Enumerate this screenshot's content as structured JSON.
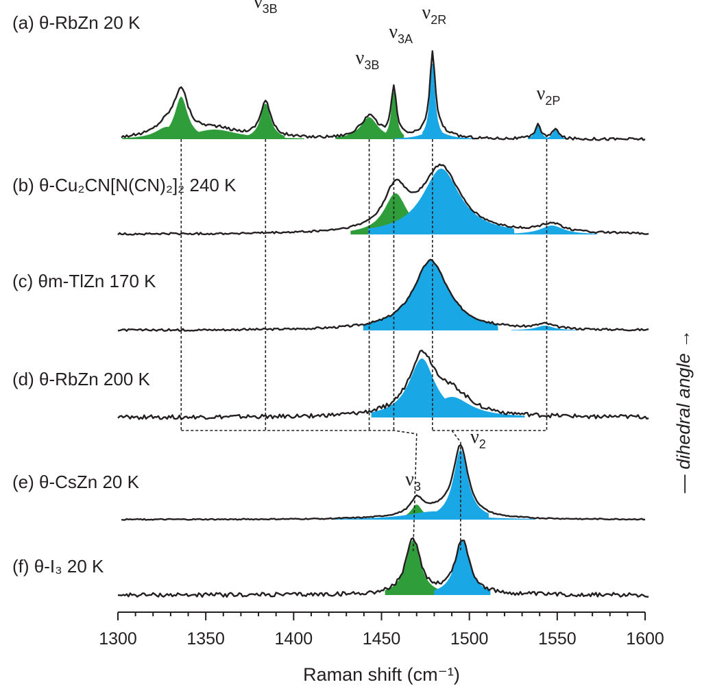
{
  "chart_data": {
    "type": "line",
    "title": "",
    "xlabel": "Raman shift (cm⁻¹)",
    "xlim": [
      1300,
      1600
    ],
    "x_ticks": [
      "1300",
      "1350",
      "1400",
      "1450",
      "1500",
      "1550",
      "1600"
    ],
    "side_annotation": "— dihedral angle →",
    "colors": {
      "v3": "#2f9e3a",
      "v2": "#1aa7e6",
      "line": "#231f20"
    },
    "series": [
      {
        "id": "a",
        "panel": "(a)",
        "sample": [
          "θ-RbZn",
          "20 K"
        ],
        "noise": 2,
        "start": 1302,
        "end": 1600,
        "peaks": [
          {
            "name": "ν3A",
            "center": 1336,
            "amp": 62,
            "width": 4.5,
            "band": "v3"
          },
          {
            "name": "ν3A-shoulder",
            "center": 1328,
            "amp": 18,
            "width": 8,
            "band": "v3"
          },
          {
            "name": "plateau",
            "center": 1355,
            "amp": 14,
            "width": 16,
            "band": "v3"
          },
          {
            "name": "ν3B",
            "center": 1384,
            "amp": 52,
            "width": 3.5,
            "band": "v3"
          },
          {
            "name": "ν3B",
            "center": 1443,
            "amp": 32,
            "width": 6,
            "band": "v3"
          },
          {
            "name": "ν3A",
            "center": 1457,
            "amp": 70,
            "width": 1.8,
            "band": "v3"
          },
          {
            "name": "ν2R",
            "center": 1479,
            "amp": 112,
            "width": 1.8,
            "band": "v2"
          },
          {
            "name": "ν2R-base",
            "center": 1480,
            "amp": 14,
            "width": 7,
            "band": "v2"
          },
          {
            "name": "ν2P",
            "center": 1539,
            "amp": 22,
            "width": 1.8,
            "band": "v2"
          },
          {
            "name": "ν2P",
            "center": 1549,
            "amp": 16,
            "width": 1.8,
            "band": "v2"
          }
        ],
        "peak_labels": [
          {
            "text": "ν",
            "sub": "3A",
            "x": 1336,
            "y": 255
          },
          {
            "text": "ν",
            "sub": "3B",
            "x": 1384,
            "y": 192
          },
          {
            "text": "ν",
            "sub": "3B",
            "x": 1442,
            "y": 110
          },
          {
            "text": "ν",
            "sub": "3A",
            "x": 1461,
            "y": 148
          },
          {
            "text": "ν",
            "sub": "2R",
            "x": 1480,
            "y": 176
          },
          {
            "text": "ν",
            "sub": "2P",
            "x": 1545,
            "y": 58
          }
        ]
      },
      {
        "id": "b",
        "panel": "(b)",
        "sample": [
          "θ-Cu₂CN[N(CN)₂]₂",
          "240 K"
        ],
        "noise": 1.5,
        "start": 1300,
        "end": 1602,
        "peaks": [
          {
            "name": "ν3",
            "center": 1458,
            "amp": 60,
            "width": 8,
            "band": "v3"
          },
          {
            "name": "ν2",
            "center": 1484,
            "amp": 96,
            "width": 13,
            "band": "v2"
          },
          {
            "name": "ν2P",
            "center": 1547,
            "amp": 13,
            "width": 8,
            "band": "v2"
          }
        ],
        "peak_labels": []
      },
      {
        "id": "c",
        "panel": "(c)",
        "sample": [
          "θm-TlZn",
          "170 K"
        ],
        "noise": 1.5,
        "start": 1300,
        "end": 1602,
        "peaks": [
          {
            "name": "ν2",
            "center": 1478,
            "amp": 102,
            "width": 12,
            "band": "v2"
          },
          {
            "name": "ν2P",
            "center": 1543,
            "amp": 7,
            "width": 6,
            "band": "v2"
          }
        ],
        "peak_labels": []
      },
      {
        "id": "d",
        "panel": "(d)",
        "sample": [
          "θ-RbZn",
          "200 K"
        ],
        "noise": 3,
        "start": 1300,
        "end": 1602,
        "peaks": [
          {
            "name": "ν2",
            "center": 1473,
            "amp": 86,
            "width": 9,
            "band": "v2"
          },
          {
            "name": "ν2-wing",
            "center": 1490,
            "amp": 30,
            "width": 13,
            "band": "v2"
          }
        ],
        "peak_labels": []
      },
      {
        "id": "e",
        "panel": "(e)",
        "sample": [
          "θ-CsZn",
          "20 K"
        ],
        "noise": 0.8,
        "start": 1302,
        "end": 1600,
        "peaks": [
          {
            "name": "ν3",
            "center": 1470,
            "amp": 22,
            "width": 4,
            "band": "v3"
          },
          {
            "name": "ν2",
            "center": 1495,
            "amp": 102,
            "width": 5,
            "band": "v2"
          },
          {
            "name": "ν2-base",
            "center": 1480,
            "amp": 12,
            "width": 18,
            "band": "v2"
          }
        ],
        "peak_labels": [
          {
            "text": "ν",
            "sub": "3",
            "x": 1468,
            "y": 50
          },
          {
            "text": "ν",
            "sub": "2",
            "x": 1505,
            "y": 112
          }
        ]
      },
      {
        "id": "f",
        "panel": "(f)",
        "sample": [
          "θ-I₃",
          "20 K"
        ],
        "noise": 3,
        "start": 1300,
        "end": 1602,
        "peaks": [
          {
            "name": "ν3",
            "center": 1468,
            "amp": 80,
            "width": 5,
            "band": "v3"
          },
          {
            "name": "ν2",
            "center": 1496,
            "amp": 79,
            "width": 5,
            "band": "v2"
          }
        ],
        "peak_labels": []
      }
    ],
    "guides": [
      {
        "from": "a",
        "to": "d",
        "x": 1336
      },
      {
        "from": "a",
        "to": "d",
        "x": 1384
      },
      {
        "from": "a",
        "to": "d",
        "x": 1443
      },
      {
        "from": "a",
        "to": "d",
        "x": 1457
      },
      {
        "from": "a",
        "to": "d",
        "x": 1479
      },
      {
        "from": "a",
        "to": "d",
        "x": 1544
      }
    ]
  }
}
